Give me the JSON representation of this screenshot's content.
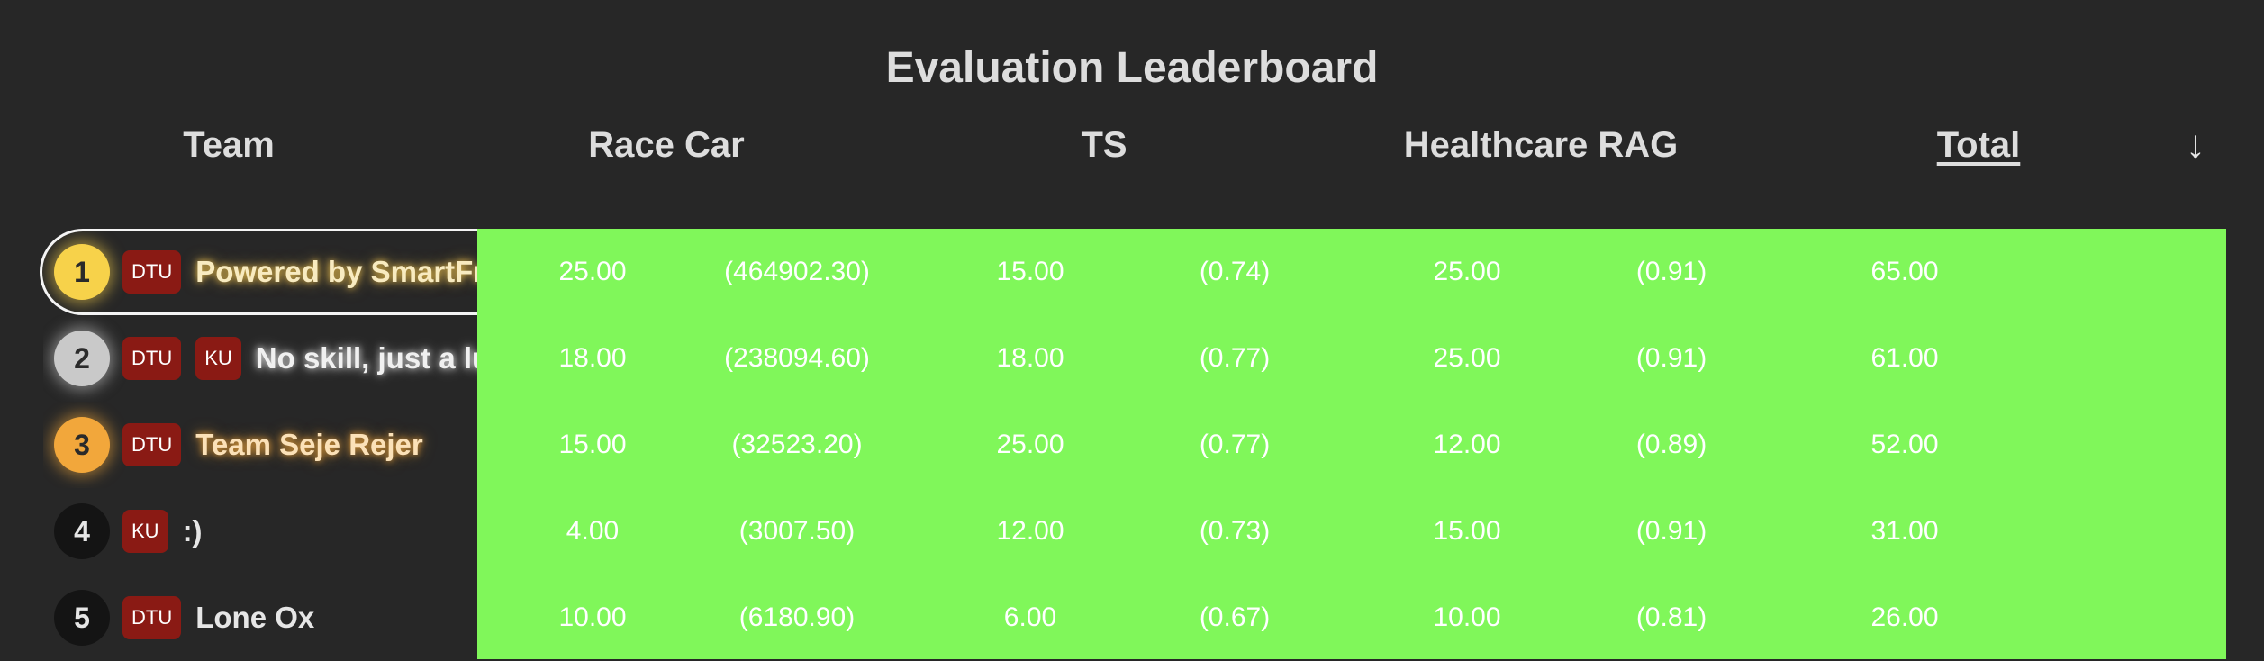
{
  "title": "Evaluation Leaderboard",
  "headers": {
    "team": "Team",
    "race_car": "Race Car",
    "ts": "TS",
    "healthcare_rag": "Healthcare RAG",
    "total": "Total",
    "sort_indicator": "↓"
  },
  "colors": {
    "background": "#272727",
    "score_area": "#80f75a",
    "badge": "#8a1a14",
    "gold": "#f7d24a",
    "silver": "#c9c9c9",
    "bronze": "#f2a73b"
  },
  "rows": [
    {
      "rank": "1",
      "badges": [
        "DTU"
      ],
      "team": "Powered by SmartFr",
      "race_car": "25.00",
      "race_car_raw": "(464902.30)",
      "ts": "15.00",
      "ts_raw": "(0.74)",
      "rag": "25.00",
      "rag_raw": "(0.91)",
      "total": "65.00"
    },
    {
      "rank": "2",
      "badges": [
        "DTU",
        "KU"
      ],
      "team": "No skill, just a lu",
      "race_car": "18.00",
      "race_car_raw": "(238094.60)",
      "ts": "18.00",
      "ts_raw": "(0.77)",
      "rag": "25.00",
      "rag_raw": "(0.91)",
      "total": "61.00"
    },
    {
      "rank": "3",
      "badges": [
        "DTU"
      ],
      "team": "Team Seje Rejer",
      "race_car": "15.00",
      "race_car_raw": "(32523.20)",
      "ts": "25.00",
      "ts_raw": "(0.77)",
      "rag": "12.00",
      "rag_raw": "(0.89)",
      "total": "52.00"
    },
    {
      "rank": "4",
      "badges": [
        "KU"
      ],
      "team": ":)",
      "race_car": "4.00",
      "race_car_raw": "(3007.50)",
      "ts": "12.00",
      "ts_raw": "(0.73)",
      "rag": "15.00",
      "rag_raw": "(0.91)",
      "total": "31.00"
    },
    {
      "rank": "5",
      "badges": [
        "DTU"
      ],
      "team": "Lone Ox",
      "race_car": "10.00",
      "race_car_raw": "(6180.90)",
      "ts": "6.00",
      "ts_raw": "(0.67)",
      "rag": "10.00",
      "rag_raw": "(0.81)",
      "total": "26.00"
    }
  ]
}
